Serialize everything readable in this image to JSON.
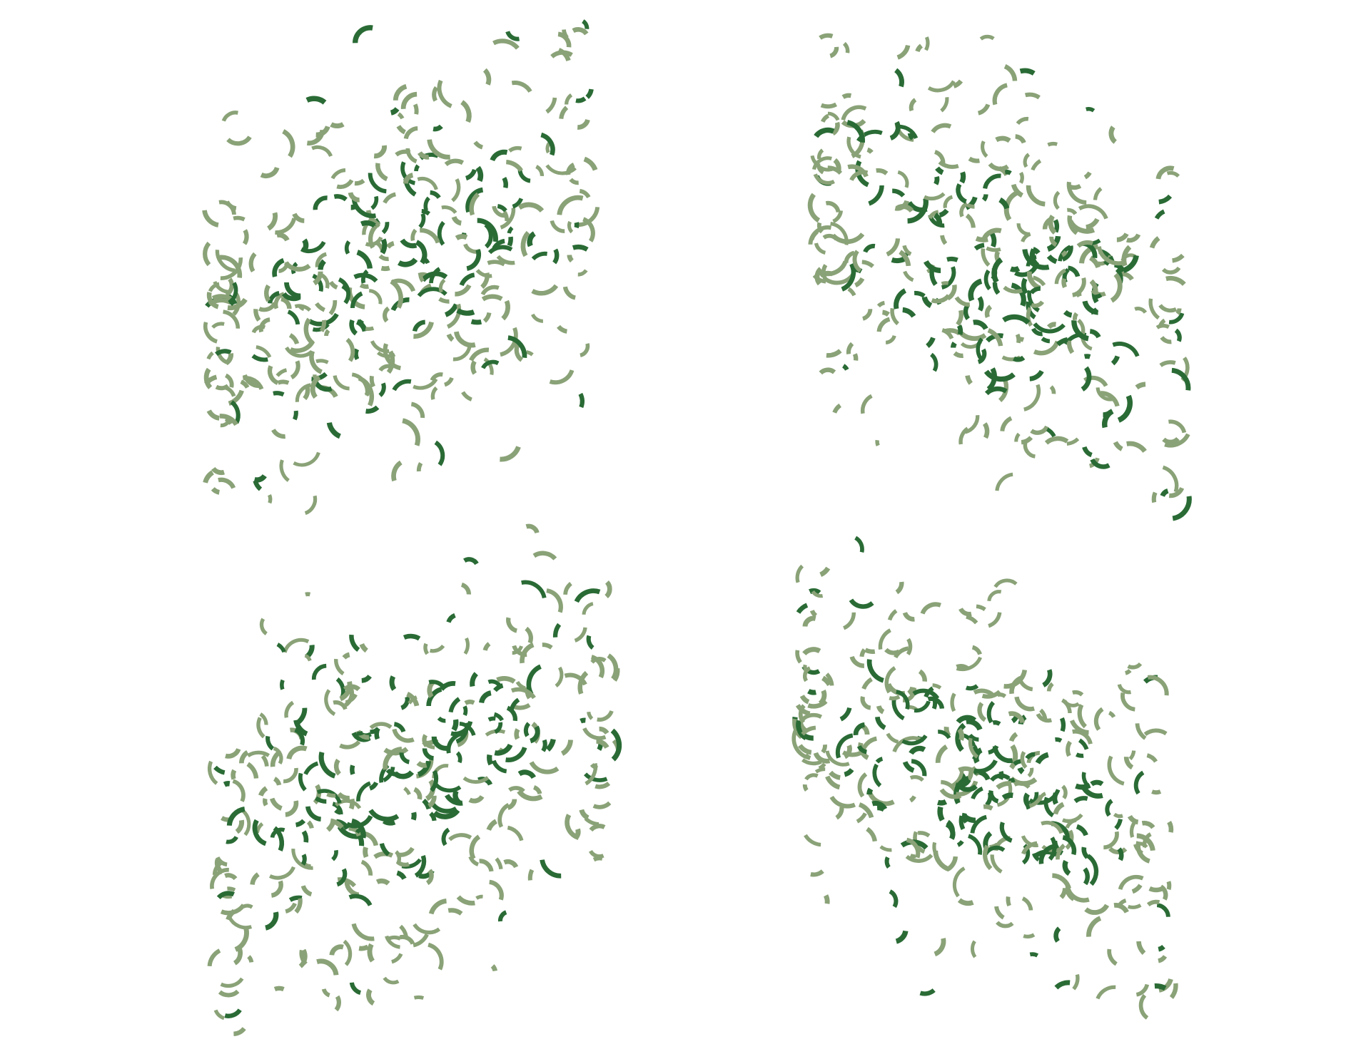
{
  "artwork": {
    "subject": "abstract-arc-scatter",
    "colors": {
      "background": "#ffffff",
      "light": "#8aa277",
      "dark": "#2a6b35"
    },
    "clusters": [
      {
        "id": "cluster-top-left",
        "orientation": "rising",
        "count": 330,
        "seed": 11
      },
      {
        "id": "cluster-top-right",
        "orientation": "falling",
        "count": 330,
        "seed": 23
      },
      {
        "id": "cluster-bottom-left",
        "orientation": "rising",
        "count": 330,
        "seed": 37
      },
      {
        "id": "cluster-bottom-right",
        "orientation": "falling",
        "count": 330,
        "seed": 53
      }
    ]
  }
}
